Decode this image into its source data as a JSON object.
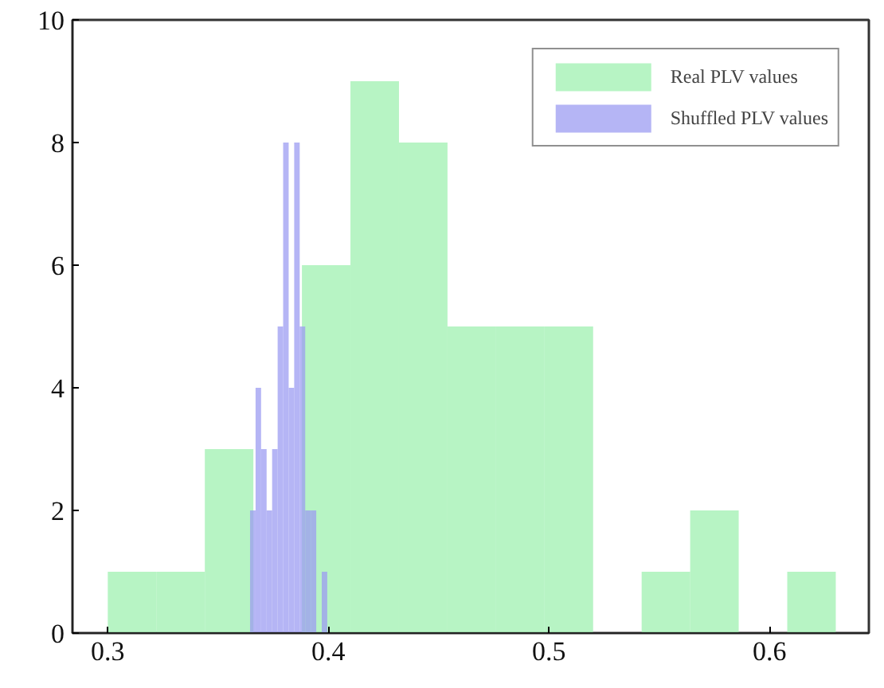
{
  "chart_data": {
    "type": "bar",
    "series": [
      {
        "name": "Real PLV values",
        "color": "#9ff0b0",
        "x": [
          0.311,
          0.333,
          0.355,
          0.377,
          0.399,
          0.421,
          0.443,
          0.465,
          0.487,
          0.509,
          0.531,
          0.553,
          0.575,
          0.597,
          0.619
        ],
        "values": [
          1,
          1,
          3,
          null,
          6,
          9,
          8,
          5,
          5,
          5,
          0,
          1,
          2,
          0,
          1
        ]
      },
      {
        "name": "Shuffled PLV values",
        "color": "#9c9cf2",
        "x": [
          0.36575,
          0.36825,
          0.37075,
          0.37325,
          0.37575,
          0.37825,
          0.38075,
          0.38325,
          0.38575,
          0.38825,
          0.39075,
          0.39325,
          0.39575,
          0.39825
        ],
        "values": [
          2,
          4,
          3,
          2,
          3,
          5,
          8,
          4,
          8,
          5,
          2,
          2,
          0,
          1
        ]
      }
    ],
    "xlim": [
      0.284,
      0.645
    ],
    "ylim": [
      0,
      10
    ],
    "xticks": [
      0.3,
      0.4,
      0.5,
      0.6
    ],
    "yticks": [
      0,
      2,
      4,
      6,
      8,
      10
    ],
    "grid": false,
    "legend": "top right"
  }
}
